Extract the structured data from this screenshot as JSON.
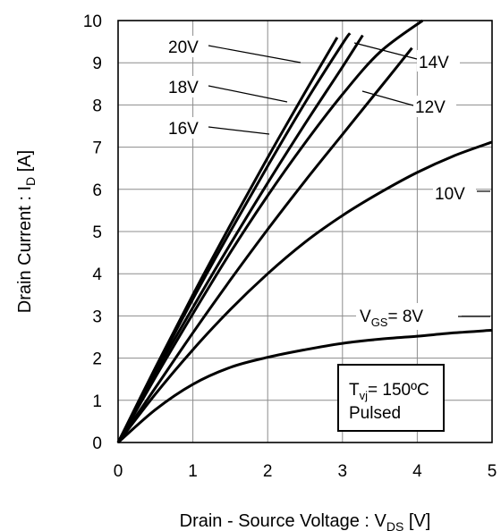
{
  "chart_data": {
    "type": "line",
    "xlabel": "Drain - Source Voltage : V",
    "xlabel_sub": "DS",
    "xlabel_unit": " [V]",
    "ylabel": "Drain Current : I",
    "ylabel_sub": "D",
    "ylabel_unit": " [A]",
    "xlim": [
      0,
      5
    ],
    "ylim": [
      0,
      10
    ],
    "xticks": [
      "0",
      "1",
      "2",
      "3",
      "4",
      "5"
    ],
    "yticks": [
      "0",
      "1",
      "2",
      "3",
      "4",
      "5",
      "6",
      "7",
      "8",
      "9",
      "10"
    ],
    "grid": true,
    "series": [
      {
        "name": "V_GS= 8V",
        "x": [
          0,
          0.5,
          1,
          1.5,
          2,
          2.5,
          3,
          3.5,
          4,
          4.5,
          5
        ],
        "y": [
          0,
          0.78,
          1.38,
          1.78,
          2.02,
          2.2,
          2.35,
          2.45,
          2.52,
          2.6,
          2.66
        ]
      },
      {
        "name": "10V",
        "x": [
          0,
          0.5,
          1,
          1.5,
          2,
          2.5,
          3,
          3.5,
          4,
          4.5,
          5
        ],
        "y": [
          0,
          1.15,
          2.2,
          3.15,
          4.0,
          4.75,
          5.38,
          5.92,
          6.4,
          6.8,
          7.12
        ]
      },
      {
        "name": "12V",
        "x": [
          0,
          0.5,
          1,
          1.5,
          2,
          2.5,
          3,
          3.5,
          3.93
        ],
        "y": [
          0,
          1.3,
          2.6,
          3.85,
          5.05,
          6.2,
          7.3,
          8.4,
          9.35
        ]
      },
      {
        "name": "14V",
        "x": [
          0,
          0.5,
          1,
          1.5,
          2,
          2.5,
          3,
          3.5,
          4.07
        ],
        "y": [
          0,
          1.55,
          3.05,
          4.5,
          5.85,
          7.1,
          8.25,
          9.25,
          10.0
        ]
      },
      {
        "name": "16V",
        "x": [
          0,
          0.5,
          1,
          1.5,
          2,
          2.5,
          3,
          3.27
        ],
        "y": [
          0,
          1.65,
          3.2,
          4.7,
          6.15,
          7.55,
          8.9,
          9.65
        ]
      },
      {
        "name": "18V",
        "x": [
          0,
          0.5,
          1,
          1.5,
          2,
          2.5,
          3,
          3.1
        ],
        "y": [
          0,
          1.72,
          3.4,
          5.0,
          6.55,
          8.05,
          9.45,
          9.7
        ]
      },
      {
        "name": "20V",
        "x": [
          0,
          0.5,
          1,
          1.5,
          2,
          2.5,
          2.93
        ],
        "y": [
          0,
          1.78,
          3.5,
          5.15,
          6.75,
          8.3,
          9.6
        ]
      }
    ],
    "labels": {
      "vgs_prefix": "V",
      "vgs_sub": "GS",
      "vgs_suffix": "= 8V",
      "v10": "10V",
      "v12": "12V",
      "v14": "14V",
      "v16": "16V",
      "v18": "18V",
      "v20": "20V"
    },
    "annotation": {
      "line1_prefix": "T",
      "line1_sub": "vj",
      "line1_suffix": "= 150ºC",
      "line2": "Pulsed"
    }
  }
}
